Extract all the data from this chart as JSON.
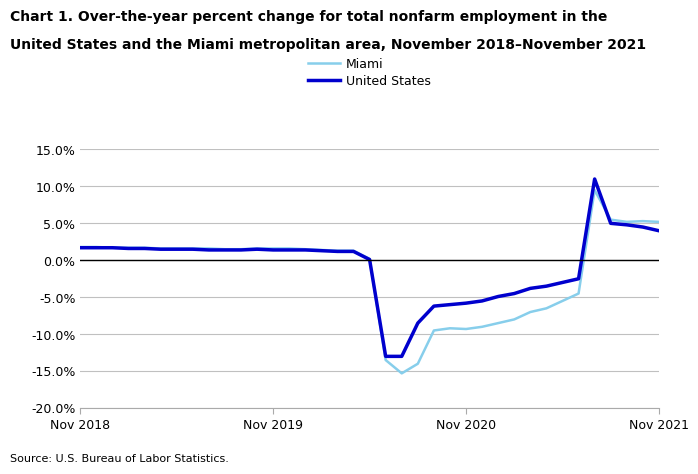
{
  "title_line1": "Chart 1. Over-the-year percent change for total nonfarm employment in the",
  "title_line2": "United States and the Miami metropolitan area, November 2018–November 2021",
  "source": "Source: U.S. Bureau of Labor Statistics.",
  "legend_miami": "Miami",
  "legend_us": "United States",
  "miami_color": "#87CEEB",
  "us_color": "#0000CD",
  "miami_linewidth": 1.8,
  "us_linewidth": 2.5,
  "ylim": [
    -20.0,
    15.0
  ],
  "yticks": [
    -20.0,
    -15.0,
    -10.0,
    -5.0,
    0.0,
    5.0,
    10.0,
    15.0
  ],
  "xtick_labels": [
    "Nov 2018",
    "Nov 2019",
    "Nov 2020",
    "Nov 2021"
  ],
  "xtick_positions": [
    0,
    12,
    24,
    36
  ],
  "miami": [
    1.8,
    1.8,
    1.7,
    1.7,
    1.7,
    1.6,
    1.6,
    1.6,
    1.6,
    1.5,
    1.5,
    1.6,
    1.6,
    1.6,
    1.5,
    1.4,
    1.3,
    1.3,
    0.2,
    -13.5,
    -15.3,
    -14.0,
    -9.5,
    -9.2,
    -9.3,
    -9.0,
    -8.5,
    -8.0,
    -7.0,
    -6.5,
    -5.5,
    -4.5,
    9.5,
    5.5,
    5.2,
    5.3,
    5.2
  ],
  "us": [
    1.7,
    1.7,
    1.7,
    1.6,
    1.6,
    1.5,
    1.5,
    1.5,
    1.4,
    1.4,
    1.4,
    1.5,
    1.4,
    1.4,
    1.4,
    1.3,
    1.2,
    1.2,
    0.1,
    -13.0,
    -13.0,
    -8.5,
    -6.2,
    -6.0,
    -5.8,
    -5.5,
    -4.9,
    -4.5,
    -3.8,
    -3.5,
    -3.0,
    -2.5,
    11.0,
    5.0,
    4.8,
    4.5,
    4.0
  ],
  "background_color": "#ffffff",
  "grid_color": "#c0c0c0"
}
